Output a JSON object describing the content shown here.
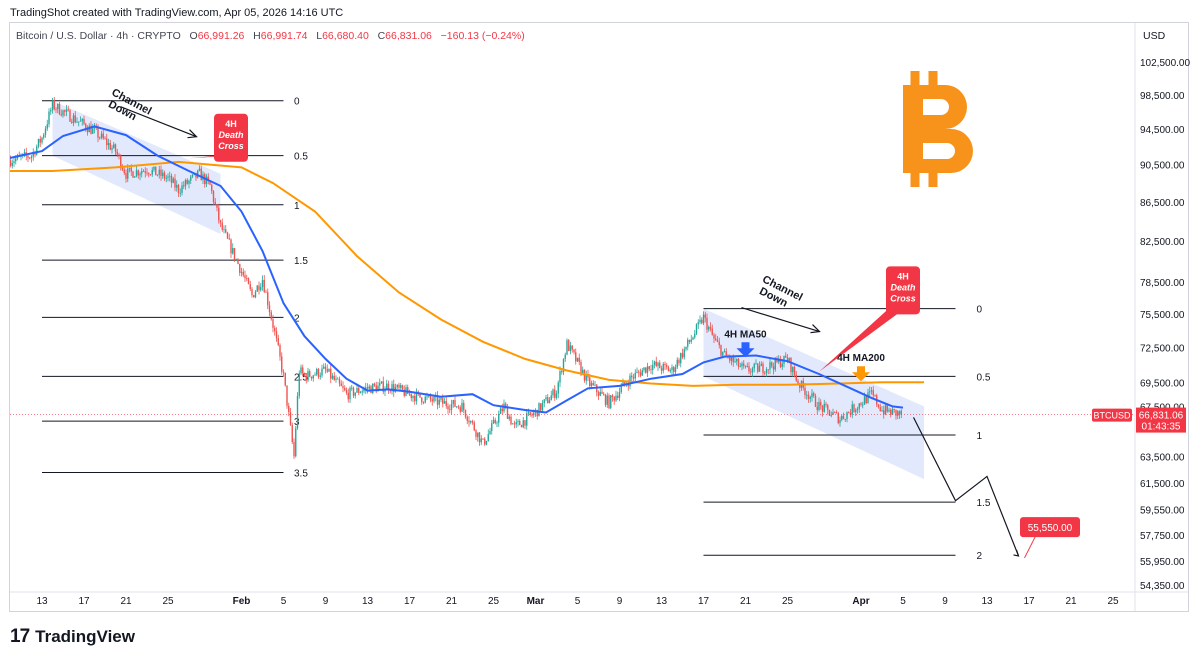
{
  "header": {
    "credit": "TradingShot created with TradingView.com, Apr 05, 2026 14:16 UTC"
  },
  "legend": {
    "symbol": "Bitcoin / U.S. Dollar · 4h · CRYPTO",
    "o_label": "O",
    "o": "66,991.26",
    "h_label": "H",
    "h": "66,991.74",
    "l_label": "L",
    "l": "66,680.40",
    "c_label": "C",
    "c": "66,831.06",
    "change": "−160.13 (−0.24%)"
  },
  "axis_currency": "USD",
  "footer": {
    "brand": "TradingView"
  },
  "colors": {
    "up": "#26a69a",
    "down": "#ef5350",
    "ma50": "#2962ff",
    "ma200": "#ff9800",
    "accent": "#f23645",
    "channel": "#d6dffb",
    "bitcoin": "#f7931a"
  },
  "chart_data": {
    "type": "candlestick",
    "symbol": "BTCUSD",
    "y_ticks": [
      54350,
      55950,
      57750,
      59550,
      61500,
      63500,
      65500,
      67500,
      69500,
      72500,
      75500,
      78500,
      82500,
      86500,
      90500,
      94500,
      98500,
      102500
    ],
    "y_tick_labels": [
      "54,350.00",
      "55,950.00",
      "57,750.00",
      "59,550.00",
      "61,500.00",
      "63,500.00",
      "",
      "67,500.00",
      "69,500.00",
      "72,500.00",
      "75,500.00",
      "78,500.00",
      "82,500.00",
      "86,500.00",
      "90,500.00",
      "94,500.00",
      "98,500.00",
      "102,500.00"
    ],
    "x_ticks": [
      {
        "date": "2026-01-13",
        "label": "13"
      },
      {
        "date": "2026-01-17",
        "label": "17"
      },
      {
        "date": "2026-01-21",
        "label": "21"
      },
      {
        "date": "2026-01-25",
        "label": "25"
      },
      {
        "date": "2026-02-01",
        "label": "Feb"
      },
      {
        "date": "2026-02-05",
        "label": "5"
      },
      {
        "date": "2026-02-09",
        "label": "9"
      },
      {
        "date": "2026-02-13",
        "label": "13"
      },
      {
        "date": "2026-02-17",
        "label": "17"
      },
      {
        "date": "2026-02-21",
        "label": "21"
      },
      {
        "date": "2026-02-25",
        "label": "25"
      },
      {
        "date": "2026-03-01",
        "label": "Mar"
      },
      {
        "date": "2026-03-05",
        "label": "5"
      },
      {
        "date": "2026-03-09",
        "label": "9"
      },
      {
        "date": "2026-03-13",
        "label": "13"
      },
      {
        "date": "2026-03-17",
        "label": "17"
      },
      {
        "date": "2026-03-21",
        "label": "21"
      },
      {
        "date": "2026-03-25",
        "label": "25"
      },
      {
        "date": "2026-04-01",
        "label": "Apr"
      },
      {
        "date": "2026-04-05",
        "label": "5"
      },
      {
        "date": "2026-04-09",
        "label": "9"
      },
      {
        "date": "2026-04-13",
        "label": "13"
      },
      {
        "date": "2026-04-17",
        "label": "17"
      },
      {
        "date": "2026-04-21",
        "label": "21"
      },
      {
        "date": "2026-04-25",
        "label": "25"
      }
    ],
    "price_path": [
      [
        "2026-01-10",
        91000
      ],
      [
        "2026-01-12",
        91500
      ],
      [
        "2026-01-13",
        93500
      ],
      [
        "2026-01-14",
        97300
      ],
      [
        "2026-01-15",
        96500
      ],
      [
        "2026-01-17",
        95000
      ],
      [
        "2026-01-18",
        94200
      ],
      [
        "2026-01-20",
        92000
      ],
      [
        "2026-01-21",
        89500
      ],
      [
        "2026-01-23",
        90000
      ],
      [
        "2026-01-25",
        89000
      ],
      [
        "2026-01-26",
        87800
      ],
      [
        "2026-01-28",
        89500
      ],
      [
        "2026-01-29",
        88200
      ],
      [
        "2026-01-30",
        84000
      ],
      [
        "2026-02-01",
        79500
      ],
      [
        "2026-02-02",
        77200
      ],
      [
        "2026-02-03",
        78800
      ],
      [
        "2026-02-04",
        74500
      ],
      [
        "2026-02-05",
        70000
      ],
      [
        "2026-02-06",
        63500
      ],
      [
        "2026-02-06T12:00",
        70500
      ],
      [
        "2026-02-07",
        70000
      ],
      [
        "2026-02-09",
        70500
      ],
      [
        "2026-02-11",
        68500
      ],
      [
        "2026-02-13",
        69000
      ],
      [
        "2026-02-15",
        69200
      ],
      [
        "2026-02-17",
        68500
      ],
      [
        "2026-02-20",
        67800
      ],
      [
        "2026-02-22",
        67500
      ],
      [
        "2026-02-24",
        64500
      ],
      [
        "2026-02-26",
        67500
      ],
      [
        "2026-02-27",
        65800
      ],
      [
        "2026-03-01",
        67000
      ],
      [
        "2026-03-03",
        68800
      ],
      [
        "2026-03-04",
        72800
      ],
      [
        "2026-03-06",
        69500
      ],
      [
        "2026-03-08",
        67800
      ],
      [
        "2026-03-10",
        69800
      ],
      [
        "2026-03-12",
        71000
      ],
      [
        "2026-03-14",
        70500
      ],
      [
        "2026-03-16",
        73500
      ],
      [
        "2026-03-17",
        75200
      ],
      [
        "2026-03-18",
        73200
      ],
      [
        "2026-03-19",
        71800
      ],
      [
        "2026-03-21",
        70500
      ],
      [
        "2026-03-23",
        70800
      ],
      [
        "2026-03-25",
        71500
      ],
      [
        "2026-03-26",
        69500
      ],
      [
        "2026-03-28",
        67500
      ],
      [
        "2026-03-30",
        66500
      ],
      [
        "2026-04-01",
        67800
      ],
      [
        "2026-04-02",
        68500
      ],
      [
        "2026-04-03",
        67200
      ],
      [
        "2026-04-04",
        67000
      ],
      [
        "2026-04-05",
        66831
      ]
    ],
    "ma50": [
      [
        "2026-01-09",
        91000
      ],
      [
        "2026-01-13",
        92000
      ],
      [
        "2026-01-15",
        93700
      ],
      [
        "2026-01-18",
        94800
      ],
      [
        "2026-01-21",
        93800
      ],
      [
        "2026-01-24",
        91500
      ],
      [
        "2026-01-27",
        89800
      ],
      [
        "2026-01-30",
        88200
      ],
      [
        "2026-02-01",
        85500
      ],
      [
        "2026-02-03",
        81500
      ],
      [
        "2026-02-05",
        76500
      ],
      [
        "2026-02-07",
        73500
      ],
      [
        "2026-02-09",
        71500
      ],
      [
        "2026-02-11",
        69800
      ],
      [
        "2026-02-13",
        68800
      ],
      [
        "2026-02-15",
        68900
      ],
      [
        "2026-02-17",
        68700
      ],
      [
        "2026-02-20",
        68300
      ],
      [
        "2026-02-23",
        68500
      ],
      [
        "2026-02-25",
        67600
      ],
      [
        "2026-02-28",
        67200
      ],
      [
        "2026-03-02",
        67000
      ],
      [
        "2026-03-04",
        68000
      ],
      [
        "2026-03-06",
        69000
      ],
      [
        "2026-03-09",
        69200
      ],
      [
        "2026-03-12",
        69800
      ],
      [
        "2026-03-15",
        70200
      ],
      [
        "2026-03-17",
        71200
      ],
      [
        "2026-03-19",
        71700
      ],
      [
        "2026-03-22",
        71800
      ],
      [
        "2026-03-25",
        71300
      ],
      [
        "2026-03-28",
        70200
      ],
      [
        "2026-03-31",
        69000
      ],
      [
        "2026-04-02",
        68200
      ],
      [
        "2026-04-04",
        67500
      ],
      [
        "2026-04-05",
        67400
      ]
    ],
    "ma200": [
      [
        "2026-01-09",
        89800
      ],
      [
        "2026-01-14",
        89800
      ],
      [
        "2026-01-20",
        90200
      ],
      [
        "2026-01-26",
        90800
      ],
      [
        "2026-02-01",
        90200
      ],
      [
        "2026-02-04",
        88500
      ],
      [
        "2026-02-08",
        85500
      ],
      [
        "2026-02-12",
        81000
      ],
      [
        "2026-02-16",
        77500
      ],
      [
        "2026-02-20",
        75000
      ],
      [
        "2026-02-24",
        73000
      ],
      [
        "2026-02-28",
        71500
      ],
      [
        "2026-03-04",
        70500
      ],
      [
        "2026-03-08",
        69700
      ],
      [
        "2026-03-12",
        69400
      ],
      [
        "2026-03-16",
        69200
      ],
      [
        "2026-03-20",
        69300
      ],
      [
        "2026-03-25",
        69300
      ],
      [
        "2026-03-30",
        69400
      ],
      [
        "2026-04-03",
        69500
      ],
      [
        "2026-04-07",
        69500
      ]
    ],
    "channels": [
      {
        "name": "Channel Down",
        "upper": [
          [
            "2026-01-14",
            97800
          ],
          [
            "2026-01-30",
            89500
          ]
        ],
        "lower": [
          [
            "2026-01-14",
            91500
          ],
          [
            "2026-01-30",
            83200
          ]
        ]
      },
      {
        "name": "Channel Down",
        "upper": [
          [
            "2026-03-17",
            76000
          ],
          [
            "2026-04-07",
            67500
          ]
        ],
        "lower": [
          [
            "2026-03-17",
            70000
          ],
          [
            "2026-04-07",
            61800
          ]
        ]
      }
    ],
    "fib_sets": [
      {
        "from": "2026-01-13",
        "to": "2026-02-05",
        "label_at": "2026-02-06",
        "levels": [
          {
            "label": "0",
            "price": 97800
          },
          {
            "label": "0.5",
            "price": 91500
          },
          {
            "label": "1",
            "price": 86200
          },
          {
            "label": "1.5",
            "price": 80600
          },
          {
            "label": "2",
            "price": 75200
          },
          {
            "label": "2.5",
            "price": 70000
          },
          {
            "label": "3",
            "price": 66300
          },
          {
            "label": "3.5",
            "price": 62300
          }
        ]
      },
      {
        "from": "2026-03-17",
        "to": "2026-04-10",
        "label_at": "2026-04-12",
        "levels": [
          {
            "label": "0",
            "price": 76000
          },
          {
            "label": "0.5",
            "price": 70000
          },
          {
            "label": "1",
            "price": 65200
          },
          {
            "label": "1.5",
            "price": 60100
          },
          {
            "label": "2",
            "price": 56350
          }
        ]
      }
    ],
    "projection": [
      [
        "2026-04-06",
        66600
      ],
      [
        "2026-04-10",
        60200
      ],
      [
        "2026-04-13",
        62000
      ],
      [
        "2026-04-16",
        56300
      ]
    ],
    "annotations": [
      {
        "type": "callout",
        "text": [
          "4H",
          "Death",
          "Cross"
        ],
        "at": [
          "2026-01-31",
          93500
        ],
        "pointer": [
          "2026-01-27",
          91200
        ]
      },
      {
        "type": "callout",
        "text": [
          "4H",
          "Death",
          "Cross"
        ],
        "at": [
          "2026-04-05",
          77700
        ],
        "pointer": [
          "2026-03-28",
          70400
        ]
      },
      {
        "type": "text",
        "text": "4H MA50",
        "at": [
          "2026-03-21",
          73400
        ]
      },
      {
        "type": "text",
        "text": "4H MA200",
        "at": [
          "2026-04-01",
          71300
        ]
      },
      {
        "type": "target",
        "text": "55,550.00",
        "at": [
          "2026-04-19",
          58300
        ]
      }
    ],
    "last_price": {
      "label": "BTCUSD",
      "price": 66831.06,
      "price_label": "66,831.06",
      "countdown": "01:43:35"
    }
  }
}
